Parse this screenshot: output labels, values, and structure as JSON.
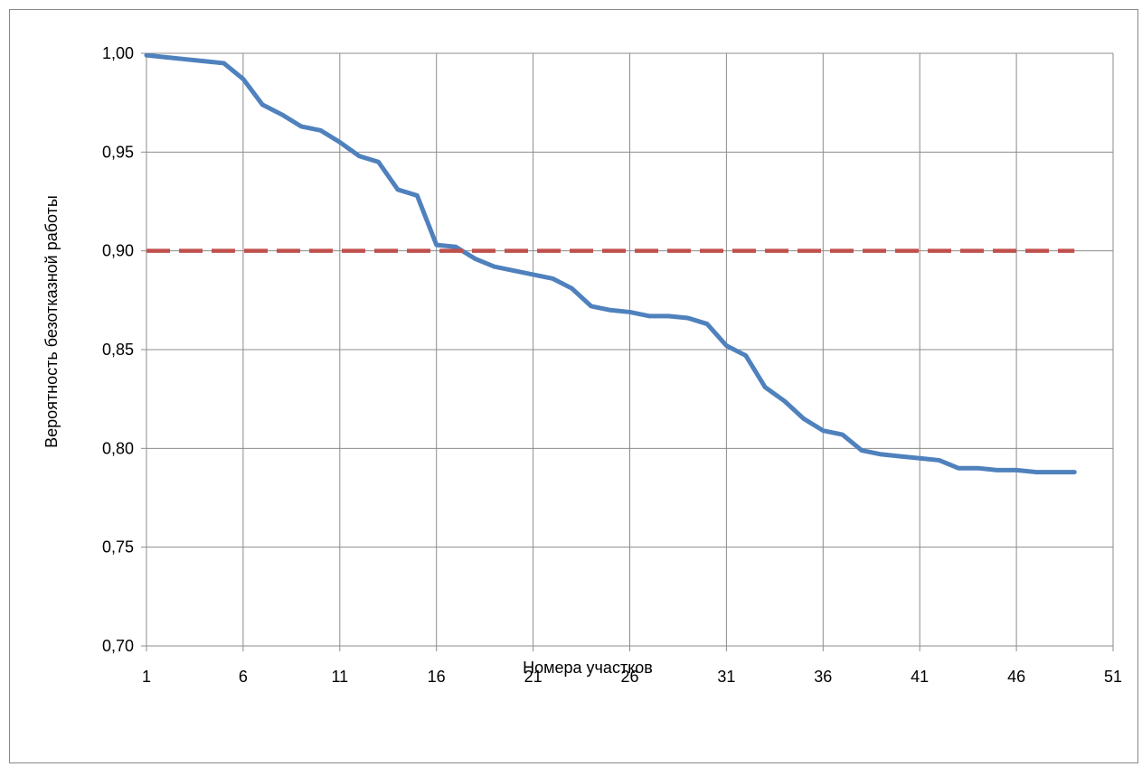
{
  "chart_data": {
    "type": "line",
    "title": "",
    "xlabel": "Номера участков",
    "ylabel": "Вероятность безотказной работы",
    "xlim": [
      1,
      51
    ],
    "ylim": [
      0.7,
      1.0
    ],
    "x_ticks": [
      1,
      6,
      11,
      16,
      21,
      26,
      31,
      36,
      41,
      46,
      51
    ],
    "x_tick_labels": [
      "1",
      "6",
      "11",
      "16",
      "21",
      "26",
      "31",
      "36",
      "41",
      "46",
      "51"
    ],
    "y_ticks": [
      0.7,
      0.75,
      0.8,
      0.85,
      0.9,
      0.95,
      1.0
    ],
    "y_tick_labels": [
      "0,70",
      "0,75",
      "0,80",
      "0,85",
      "0,90",
      "0,95",
      "1,00"
    ],
    "grid": true,
    "legend": "none",
    "series": [
      {
        "style": "solid",
        "color": "#4F81BD",
        "x": [
          1,
          2,
          3,
          4,
          5,
          6,
          7,
          8,
          9,
          10,
          11,
          12,
          13,
          14,
          15,
          16,
          17,
          18,
          19,
          20,
          21,
          22,
          23,
          24,
          25,
          26,
          27,
          28,
          29,
          30,
          31,
          32,
          33,
          34,
          35,
          36,
          37,
          38,
          39,
          40,
          41,
          42,
          43,
          44,
          45,
          46,
          47,
          48,
          49
        ],
        "values": [
          0.999,
          0.998,
          0.997,
          0.996,
          0.995,
          0.987,
          0.974,
          0.969,
          0.963,
          0.961,
          0.955,
          0.948,
          0.945,
          0.931,
          0.928,
          0.903,
          0.902,
          0.896,
          0.892,
          0.89,
          0.888,
          0.886,
          0.881,
          0.872,
          0.87,
          0.869,
          0.867,
          0.867,
          0.866,
          0.863,
          0.852,
          0.847,
          0.831,
          0.824,
          0.815,
          0.809,
          0.807,
          0.799,
          0.797,
          0.796,
          0.795,
          0.794,
          0.79,
          0.79,
          0.789,
          0.789,
          0.788,
          0.788,
          0.788
        ]
      },
      {
        "style": "dashed",
        "color": "#C0504D",
        "x": [
          1,
          49
        ],
        "values": [
          0.9,
          0.9
        ]
      }
    ]
  }
}
